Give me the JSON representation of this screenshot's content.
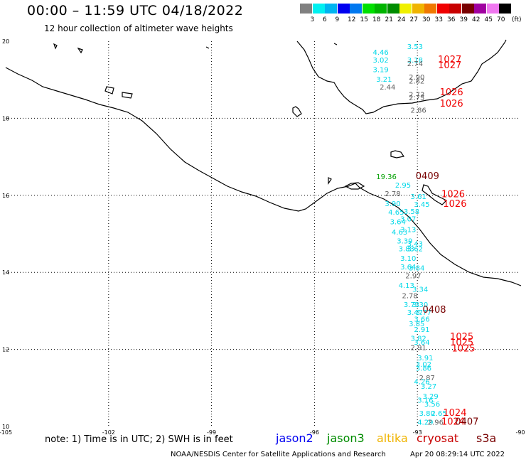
{
  "header": {
    "title": "00:00 – 11:59 UTC 04/18/2022",
    "subtitle": "12 hour collection of altimeter wave heights"
  },
  "legend": {
    "unit": "(ft)",
    "bins": [
      {
        "label": "",
        "color": "#808080"
      },
      {
        "label": "3",
        "color": "#00f0f0"
      },
      {
        "label": "6",
        "color": "#00b4f0"
      },
      {
        "label": "9",
        "color": "#0000f0"
      },
      {
        "label": "12",
        "color": "#0078f0"
      },
      {
        "label": "15",
        "color": "#00e000"
      },
      {
        "label": "18",
        "color": "#00b400"
      },
      {
        "label": "21",
        "color": "#008c00"
      },
      {
        "label": "24",
        "color": "#f0f000"
      },
      {
        "label": "27",
        "color": "#f0b400"
      },
      {
        "label": "30",
        "color": "#f07800"
      },
      {
        "label": "33",
        "color": "#f00000"
      },
      {
        "label": "36",
        "color": "#c80000"
      },
      {
        "label": "39",
        "color": "#780000"
      },
      {
        "label": "42",
        "color": "#a000a0"
      },
      {
        "label": "45",
        "color": "#f078f0"
      },
      {
        "label": "70",
        "color": "#000000"
      }
    ]
  },
  "map": {
    "lon_ticks": [
      "-105",
      "-102",
      "-99",
      "-96",
      "-93",
      "-90"
    ],
    "lat_ticks": [
      "20",
      "18",
      "16",
      "14",
      "12",
      "10"
    ]
  },
  "observations": [
    {
      "v": "3.53",
      "c": "#00d8e8",
      "lon": -93.3,
      "lat": 19.8
    },
    {
      "v": "4.46",
      "c": "#00d8e8",
      "lon": -94.3,
      "lat": 19.65
    },
    {
      "v": "3.02",
      "c": "#00d8e8",
      "lon": -94.3,
      "lat": 19.45
    },
    {
      "v": "3.18",
      "c": "#00d8e8",
      "lon": -93.3,
      "lat": 19.45
    },
    {
      "v": "2.74",
      "c": "#606060",
      "lon": -93.3,
      "lat": 19.35
    },
    {
      "v": "3.19",
      "c": "#00d8e8",
      "lon": -94.3,
      "lat": 19.2
    },
    {
      "v": "3.21",
      "c": "#00d8e8",
      "lon": -94.2,
      "lat": 18.95
    },
    {
      "v": "2.90",
      "c": "#606060",
      "lon": -93.25,
      "lat": 19.0
    },
    {
      "v": "2.82",
      "c": "#606060",
      "lon": -93.25,
      "lat": 18.9
    },
    {
      "v": "2.44",
      "c": "#606060",
      "lon": -94.1,
      "lat": 18.75
    },
    {
      "v": "2.73",
      "c": "#606060",
      "lon": -93.25,
      "lat": 18.55
    },
    {
      "v": "2.75",
      "c": "#606060",
      "lon": -93.25,
      "lat": 18.47
    },
    {
      "v": "2.86",
      "c": "#606060",
      "lon": -93.2,
      "lat": 18.15
    },
    {
      "v": "19.36",
      "c": "#00a000",
      "lon": -94.2,
      "lat": 16.42
    },
    {
      "v": "2.95",
      "c": "#00d8e8",
      "lon": -93.65,
      "lat": 16.2
    },
    {
      "v": "2.78",
      "c": "#606060",
      "lon": -93.95,
      "lat": 15.98
    },
    {
      "v": "3.61",
      "c": "#00d8e8",
      "lon": -93.2,
      "lat": 15.9
    },
    {
      "v": "3.45",
      "c": "#00d8e8",
      "lon": -93.1,
      "lat": 15.7
    },
    {
      "v": "3.90",
      "c": "#00d8e8",
      "lon": -93.95,
      "lat": 15.72
    },
    {
      "v": "4.65",
      "c": "#00d8e8",
      "lon": -93.85,
      "lat": 15.5
    },
    {
      "v": "3.58",
      "c": "#00d8e8",
      "lon": -93.4,
      "lat": 15.52
    },
    {
      "v": "3.07",
      "c": "#00d8e8",
      "lon": -93.5,
      "lat": 15.32
    },
    {
      "v": "3.64",
      "c": "#00d8e8",
      "lon": -93.8,
      "lat": 15.25
    },
    {
      "v": "3.13",
      "c": "#00d8e8",
      "lon": -93.5,
      "lat": 15.05
    },
    {
      "v": "4.63",
      "c": "#00d8e8",
      "lon": -93.75,
      "lat": 14.98
    },
    {
      "v": "3.39",
      "c": "#00d8e8",
      "lon": -93.6,
      "lat": 14.75
    },
    {
      "v": "3.43",
      "c": "#00d8e8",
      "lon": -93.3,
      "lat": 14.68
    },
    {
      "v": "3.83",
      "c": "#00d8e8",
      "lon": -93.55,
      "lat": 14.55
    },
    {
      "v": "3.62",
      "c": "#00d8e8",
      "lon": -93.3,
      "lat": 14.55
    },
    {
      "v": "3.10",
      "c": "#00d8e8",
      "lon": -93.5,
      "lat": 14.3
    },
    {
      "v": "3.64",
      "c": "#00d8e8",
      "lon": -93.5,
      "lat": 14.08
    },
    {
      "v": "3.84",
      "c": "#00d8e8",
      "lon": -93.25,
      "lat": 14.05
    },
    {
      "v": "2.97",
      "c": "#606060",
      "lon": -93.35,
      "lat": 13.85
    },
    {
      "v": "4.13",
      "c": "#00d8e8",
      "lon": -93.55,
      "lat": 13.6
    },
    {
      "v": "3.34",
      "c": "#00d8e8",
      "lon": -93.15,
      "lat": 13.5
    },
    {
      "v": "2.78",
      "c": "#606060",
      "lon": -93.45,
      "lat": 13.33
    },
    {
      "v": "3.30",
      "c": "#00d8e8",
      "lon": -93.15,
      "lat": 13.1
    },
    {
      "v": "3.73",
      "c": "#00d8e8",
      "lon": -93.4,
      "lat": 13.1
    },
    {
      "v": "3.47",
      "c": "#00d8e8",
      "lon": -93.3,
      "lat": 12.9
    },
    {
      "v": "3.77",
      "c": "#00d8e8",
      "lon": -93.05,
      "lat": 12.9
    },
    {
      "v": "3.66",
      "c": "#00d8e8",
      "lon": -93.1,
      "lat": 12.72
    },
    {
      "v": "3.85",
      "c": "#00d8e8",
      "lon": -93.25,
      "lat": 12.6
    },
    {
      "v": "2.91",
      "c": "#00d8e8",
      "lon": -93.1,
      "lat": 12.45
    },
    {
      "v": "3.82",
      "c": "#00d8e8",
      "lon": -93.2,
      "lat": 12.22
    },
    {
      "v": "3.64",
      "c": "#00d8e8",
      "lon": -93.1,
      "lat": 12.12
    },
    {
      "v": "2.91",
      "c": "#606060",
      "lon": -93.2,
      "lat": 11.98
    },
    {
      "v": "3.91",
      "c": "#00d8e8",
      "lon": -93.0,
      "lat": 11.72
    },
    {
      "v": "3.02",
      "c": "#00d8e8",
      "lon": -93.05,
      "lat": 11.55
    },
    {
      "v": "3.86",
      "c": "#00d8e8",
      "lon": -93.05,
      "lat": 11.45
    },
    {
      "v": "2.87",
      "c": "#606060",
      "lon": -92.95,
      "lat": 11.2
    },
    {
      "v": "4.26",
      "c": "#00d8e8",
      "lon": -93.1,
      "lat": 11.1
    },
    {
      "v": "3.27",
      "c": "#00d8e8",
      "lon": -92.9,
      "lat": 10.98
    },
    {
      "v": "3.29",
      "c": "#00d8e8",
      "lon": -92.85,
      "lat": 10.72
    },
    {
      "v": "3.16",
      "c": "#00d8e8",
      "lon": -93.0,
      "lat": 10.62
    },
    {
      "v": "3.56",
      "c": "#00d8e8",
      "lon": -92.8,
      "lat": 10.52
    },
    {
      "v": "3.80",
      "c": "#00d8e8",
      "lon": -92.95,
      "lat": 10.28
    },
    {
      "v": "2.65",
      "c": "#00d8e8",
      "lon": -92.6,
      "lat": 10.28
    },
    {
      "v": "4.29",
      "c": "#00d8e8",
      "lon": -93.0,
      "lat": 10.05
    },
    {
      "v": "2.96",
      "c": "#606060",
      "lon": -92.7,
      "lat": 10.05
    },
    {
      "v": "1027",
      "c": "#f00000",
      "lon": -92.4,
      "lat": 19.45
    },
    {
      "v": "1027",
      "c": "#f00000",
      "lon": -92.4,
      "lat": 19.3
    },
    {
      "v": "1026",
      "c": "#f00000",
      "lon": -92.35,
      "lat": 18.6
    },
    {
      "v": "1026",
      "c": "#f00000",
      "lon": -92.35,
      "lat": 18.3
    },
    {
      "v": "0409",
      "c": "#780000",
      "lon": -93.05,
      "lat": 16.42
    },
    {
      "v": "1026",
      "c": "#f00000",
      "lon": -92.3,
      "lat": 15.95
    },
    {
      "v": "1026",
      "c": "#f00000",
      "lon": -92.25,
      "lat": 15.7
    },
    {
      "v": "0408",
      "c": "#780000",
      "lon": -92.85,
      "lat": 12.95
    },
    {
      "v": "1025",
      "c": "#f00000",
      "lon": -92.05,
      "lat": 12.25
    },
    {
      "v": "1025",
      "c": "#f00000",
      "lon": -92.05,
      "lat": 12.1
    },
    {
      "v": "1025",
      "c": "#f00000",
      "lon": -92.0,
      "lat": 11.95
    },
    {
      "v": "1024",
      "c": "#f00000",
      "lon": -92.25,
      "lat": 10.28
    },
    {
      "v": "1024",
      "c": "#f00000",
      "lon": -92.3,
      "lat": 10.05
    },
    {
      "v": "0407",
      "c": "#780000",
      "lon": -91.9,
      "lat": 10.05
    }
  ],
  "footer": {
    "note": "note: 1) Time is in UTC; 2) SWH is in feet",
    "satellites": [
      {
        "label": "jason2",
        "color": "#0000f0"
      },
      {
        "label": "jason3",
        "color": "#008c00"
      },
      {
        "label": "altika",
        "color": "#f0b400"
      },
      {
        "label": "cryosat",
        "color": "#c80000"
      },
      {
        "label": "s3a",
        "color": "#780000"
      }
    ],
    "credit": "NOAA/NESDIS Center for Satellite Applications and Research",
    "timestamp": "Apr 20 08:29:14 UTC 2022"
  }
}
